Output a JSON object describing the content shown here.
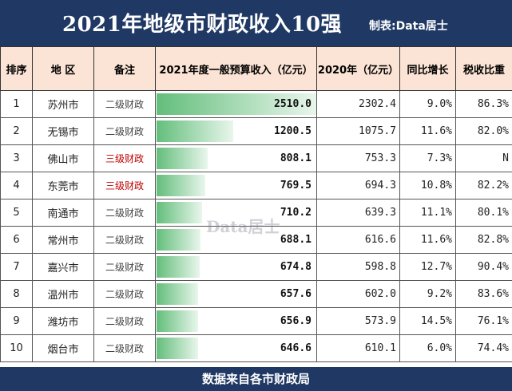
{
  "header": {
    "title": "2021年地级市财政收入10强",
    "maker": "制表:Data居士"
  },
  "footer": {
    "text": "数据来自各市财政局"
  },
  "watermark": "Data居士",
  "colors": {
    "header_bg": "#1f3864",
    "col_header_bg": "#fbe4d5",
    "bar": "#63be7b",
    "note_red": "#c00000"
  },
  "chart_data": {
    "type": "table",
    "title": "2021年地级市财政收入10强",
    "columns": [
      "排序",
      "地 区",
      "备注",
      "2021年度一般预算收入（亿元）",
      "2020年（亿元）",
      "同比增长",
      "税收比重"
    ],
    "bar_column": "2021年度一般预算收入（亿元）",
    "bar_max": 2510.0,
    "rows": [
      {
        "rank": "1",
        "city": "苏州市",
        "note": "二级财政",
        "v2021": 2510.0,
        "v2021_label": "2510.0",
        "v2020": "2302.4",
        "growth": "9.0%",
        "tax": "86.3%"
      },
      {
        "rank": "2",
        "city": "无锡市",
        "note": "二级财政",
        "v2021": 1200.5,
        "v2021_label": "1200.5",
        "v2020": "1075.7",
        "growth": "11.6%",
        "tax": "82.0%"
      },
      {
        "rank": "3",
        "city": "佛山市",
        "note": "三级财政",
        "v2021": 808.1,
        "v2021_label": "808.1",
        "v2020": "753.3",
        "growth": "7.3%",
        "tax": "N"
      },
      {
        "rank": "4",
        "city": "东莞市",
        "note": "三级财政",
        "v2021": 769.5,
        "v2021_label": "769.5",
        "v2020": "694.3",
        "growth": "10.8%",
        "tax": "82.2%"
      },
      {
        "rank": "5",
        "city": "南通市",
        "note": "二级财政",
        "v2021": 710.2,
        "v2021_label": "710.2",
        "v2020": "639.3",
        "growth": "11.1%",
        "tax": "80.1%"
      },
      {
        "rank": "6",
        "city": "常州市",
        "note": "二级财政",
        "v2021": 688.1,
        "v2021_label": "688.1",
        "v2020": "616.6",
        "growth": "11.6%",
        "tax": "82.8%"
      },
      {
        "rank": "7",
        "city": "嘉兴市",
        "note": "二级财政",
        "v2021": 674.8,
        "v2021_label": "674.8",
        "v2020": "598.8",
        "growth": "12.7%",
        "tax": "90.4%"
      },
      {
        "rank": "8",
        "city": "温州市",
        "note": "二级财政",
        "v2021": 657.6,
        "v2021_label": "657.6",
        "v2020": "602.0",
        "growth": "9.2%",
        "tax": "83.6%"
      },
      {
        "rank": "9",
        "city": "潍坊市",
        "note": "二级财政",
        "v2021": 656.9,
        "v2021_label": "656.9",
        "v2020": "573.9",
        "growth": "14.5%",
        "tax": "76.1%"
      },
      {
        "rank": "10",
        "city": "烟台市",
        "note": "二级财政",
        "v2021": 646.6,
        "v2021_label": "646.6",
        "v2020": "610.1",
        "growth": "6.0%",
        "tax": "74.4%"
      }
    ]
  }
}
